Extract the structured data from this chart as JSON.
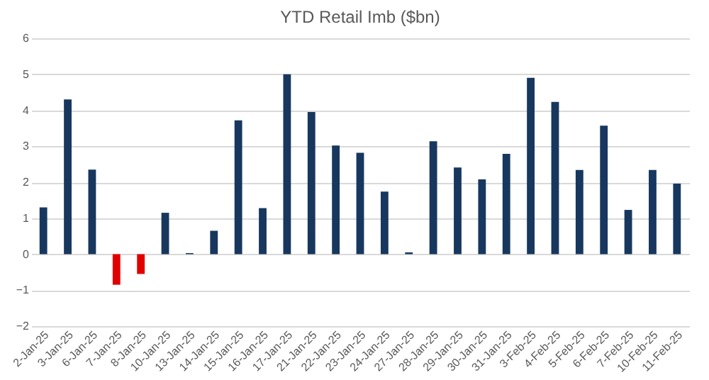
{
  "chart_data": {
    "type": "bar",
    "title": "YTD Retail Imb ($bn)",
    "categories": [
      "2-Jan-25",
      "3-Jan-25",
      "6-Jan-25",
      "7-Jan-25",
      "8-Jan-25",
      "10-Jan-25",
      "13-Jan-25",
      "14-Jan-25",
      "15-Jan-25",
      "16-Jan-25",
      "17-Jan-25",
      "21-Jan-25",
      "22-Jan-25",
      "23-Jan-25",
      "24-Jan-25",
      "27-Jan-25",
      "28-Jan-25",
      "29-Jan-25",
      "30-Jan-25",
      "31-Jan-25",
      "3-Feb-25",
      "4-Feb-25",
      "5-Feb-25",
      "6-Feb-25",
      "7-Feb-25",
      "10-Feb-25",
      "11-Feb-25"
    ],
    "values": [
      1.3,
      4.3,
      2.35,
      -0.85,
      -0.55,
      1.15,
      0.03,
      0.65,
      3.72,
      1.28,
      5.0,
      3.95,
      3.02,
      2.82,
      1.74,
      0.05,
      3.14,
      2.41,
      2.08,
      2.79,
      4.9,
      4.23,
      2.34,
      3.57,
      1.23,
      2.34,
      1.96
    ],
    "colors": [
      "#17375e",
      "#17375e",
      "#17375e",
      "#e00000",
      "#e00000",
      "#17375e",
      "#17375e",
      "#17375e",
      "#17375e",
      "#17375e",
      "#17375e",
      "#17375e",
      "#17375e",
      "#17375e",
      "#17375e",
      "#17375e",
      "#17375e",
      "#17375e",
      "#17375e",
      "#17375e",
      "#17375e",
      "#17375e",
      "#17375e",
      "#17375e",
      "#17375e",
      "#17375e",
      "#17375e"
    ],
    "ylim": [
      -2,
      6
    ],
    "yticks": [
      -2,
      -1,
      0,
      1,
      2,
      3,
      4,
      5,
      6
    ],
    "grid": "y",
    "legend": false
  }
}
